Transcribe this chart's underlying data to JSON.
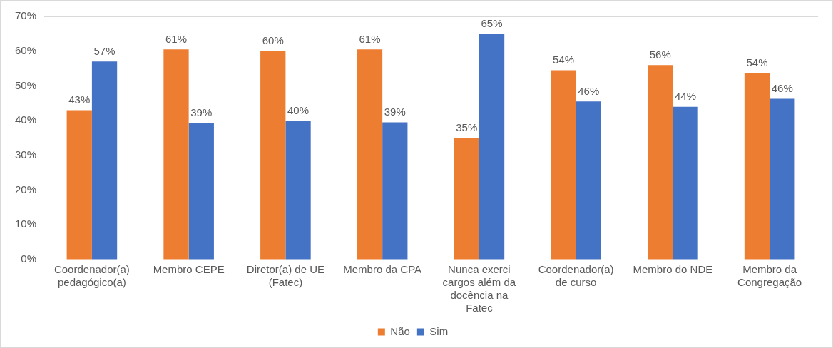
{
  "chart_data": {
    "type": "bar",
    "categories": [
      "Coordenador(a) pedagógico(a)",
      "Membro CEPE",
      "Diretor(a) de UE (Fatec)",
      "Membro da CPA",
      "Nunca exerci cargos além da docência na Fatec",
      "Coordenador(a) de curso",
      "Membro do NDE",
      "Membro da Congregação"
    ],
    "series": [
      {
        "name": "Não",
        "color": "#ed7d31",
        "values": [
          43,
          60.5,
          60,
          60.5,
          35,
          54.5,
          56,
          53.7
        ],
        "value_labels": [
          "43%",
          "61%",
          "60%",
          "61%",
          "35%",
          "54%",
          "56%",
          "54%"
        ]
      },
      {
        "name": "Sim",
        "color": "#4472c4",
        "values": [
          57,
          39.3,
          40,
          39.5,
          65,
          45.5,
          44,
          46.3
        ],
        "value_labels": [
          "57%",
          "39%",
          "40%",
          "39%",
          "65%",
          "46%",
          "44%",
          "46%"
        ]
      }
    ],
    "ylim": [
      0,
      70
    ],
    "yticks": [
      {
        "value": 0,
        "label": "0%"
      },
      {
        "value": 10,
        "label": "10%"
      },
      {
        "value": 20,
        "label": "20%"
      },
      {
        "value": 30,
        "label": "30%"
      },
      {
        "value": 40,
        "label": "40%"
      },
      {
        "value": 50,
        "label": "50%"
      },
      {
        "value": 60,
        "label": "60%"
      },
      {
        "value": 70,
        "label": "70%"
      }
    ],
    "grid": "y",
    "legend": "bottom"
  }
}
